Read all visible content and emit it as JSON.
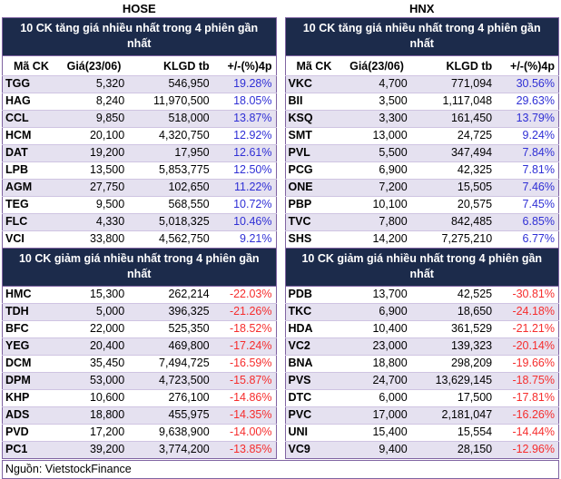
{
  "source": {
    "label": "Nguồn: VietstockFinance"
  },
  "colors": {
    "header_bg": "#1C2B4B",
    "border": "#8064A2",
    "row_line": "#CFC4E2",
    "row_stripe": "#E5E1F0",
    "gain_text": "#2F2FD5",
    "loss_text": "#F62D2D"
  },
  "exchanges": [
    {
      "name": "HOSE",
      "gainers_title": "10 CK tăng giá nhiều nhất trong 4 phiên gần nhất",
      "losers_title": "10 CK giảm giá nhiều nhất trong 4 phiên gần nhất",
      "columns": [
        "Mã CK",
        "Giá(23/06)",
        "KLGD tb",
        "+/-(%)4p"
      ],
      "gainers": [
        {
          "code": "TGG",
          "price": "5,320",
          "volume": "546,950",
          "change": "19.28%"
        },
        {
          "code": "HAG",
          "price": "8,240",
          "volume": "11,970,500",
          "change": "18.05%"
        },
        {
          "code": "CCL",
          "price": "9,850",
          "volume": "518,000",
          "change": "13.87%"
        },
        {
          "code": "HCM",
          "price": "20,100",
          "volume": "4,320,750",
          "change": "12.92%"
        },
        {
          "code": "DAT",
          "price": "19,200",
          "volume": "17,950",
          "change": "12.61%"
        },
        {
          "code": "LPB",
          "price": "13,500",
          "volume": "5,853,775",
          "change": "12.50%"
        },
        {
          "code": "AGM",
          "price": "27,750",
          "volume": "102,650",
          "change": "11.22%"
        },
        {
          "code": "TEG",
          "price": "9,500",
          "volume": "568,550",
          "change": "10.72%"
        },
        {
          "code": "FLC",
          "price": "4,330",
          "volume": "5,018,325",
          "change": "10.46%"
        },
        {
          "code": "VCI",
          "price": "33,800",
          "volume": "4,562,750",
          "change": "9.21%"
        }
      ],
      "losers": [
        {
          "code": "HMC",
          "price": "15,300",
          "volume": "262,214",
          "change": "-22.03%"
        },
        {
          "code": "TDH",
          "price": "5,000",
          "volume": "396,325",
          "change": "-21.26%"
        },
        {
          "code": "BFC",
          "price": "22,000",
          "volume": "525,350",
          "change": "-18.52%"
        },
        {
          "code": "YEG",
          "price": "20,400",
          "volume": "469,800",
          "change": "-17.24%"
        },
        {
          "code": "DCM",
          "price": "35,450",
          "volume": "7,494,725",
          "change": "-16.59%"
        },
        {
          "code": "DPM",
          "price": "53,000",
          "volume": "4,723,500",
          "change": "-15.87%"
        },
        {
          "code": "KHP",
          "price": "10,600",
          "volume": "276,100",
          "change": "-14.86%"
        },
        {
          "code": "ADS",
          "price": "18,800",
          "volume": "455,975",
          "change": "-14.35%"
        },
        {
          "code": "PVD",
          "price": "17,200",
          "volume": "9,638,900",
          "change": "-14.00%"
        },
        {
          "code": "PC1",
          "price": "39,200",
          "volume": "3,774,200",
          "change": "-13.85%"
        }
      ]
    },
    {
      "name": "HNX",
      "gainers_title": "10 CK tăng giá nhiều nhất trong 4 phiên gần nhất",
      "losers_title": "10 CK giảm giá nhiều nhất trong 4 phiên gần nhất",
      "columns": [
        "Mã CK",
        "Giá(23/06)",
        "KLGD tb",
        "+/-(%)4p"
      ],
      "gainers": [
        {
          "code": "VKC",
          "price": "4,700",
          "volume": "771,094",
          "change": "30.56%"
        },
        {
          "code": "BII",
          "price": "3,500",
          "volume": "1,117,048",
          "change": "29.63%"
        },
        {
          "code": "KSQ",
          "price": "3,300",
          "volume": "161,450",
          "change": "13.79%"
        },
        {
          "code": "SMT",
          "price": "13,000",
          "volume": "24,725",
          "change": "9.24%"
        },
        {
          "code": "PVL",
          "price": "5,500",
          "volume": "347,494",
          "change": "7.84%"
        },
        {
          "code": "PCG",
          "price": "6,900",
          "volume": "42,325",
          "change": "7.81%"
        },
        {
          "code": "ONE",
          "price": "7,200",
          "volume": "15,505",
          "change": "7.46%"
        },
        {
          "code": "PBP",
          "price": "10,100",
          "volume": "20,575",
          "change": "7.45%"
        },
        {
          "code": "TVC",
          "price": "7,800",
          "volume": "842,485",
          "change": "6.85%"
        },
        {
          "code": "SHS",
          "price": "14,200",
          "volume": "7,275,210",
          "change": "6.77%"
        }
      ],
      "losers": [
        {
          "code": "PDB",
          "price": "13,700",
          "volume": "42,525",
          "change": "-30.81%"
        },
        {
          "code": "TKC",
          "price": "6,900",
          "volume": "18,650",
          "change": "-24.18%"
        },
        {
          "code": "HDA",
          "price": "10,400",
          "volume": "361,529",
          "change": "-21.21%"
        },
        {
          "code": "VC2",
          "price": "23,000",
          "volume": "139,323",
          "change": "-20.14%"
        },
        {
          "code": "BNA",
          "price": "18,800",
          "volume": "298,209",
          "change": "-19.66%"
        },
        {
          "code": "PVS",
          "price": "24,700",
          "volume": "13,629,145",
          "change": "-18.75%"
        },
        {
          "code": "DTC",
          "price": "6,000",
          "volume": "17,500",
          "change": "-17.81%"
        },
        {
          "code": "PVC",
          "price": "17,000",
          "volume": "2,181,047",
          "change": "-16.26%"
        },
        {
          "code": "UNI",
          "price": "15,400",
          "volume": "15,554",
          "change": "-14.44%"
        },
        {
          "code": "VC9",
          "price": "9,400",
          "volume": "28,150",
          "change": "-12.96%"
        }
      ]
    }
  ]
}
